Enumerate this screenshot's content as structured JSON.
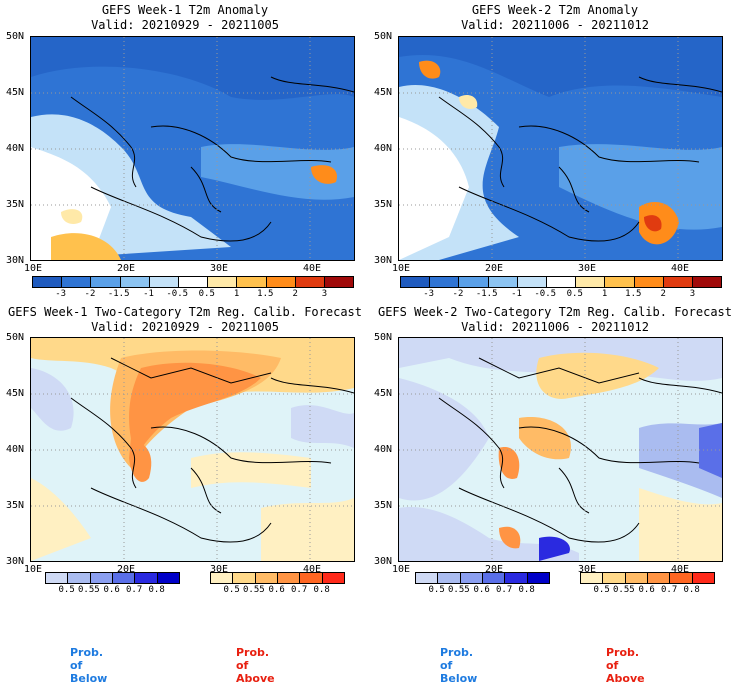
{
  "panels": [
    {
      "title": "GEFS Week-1 T2m Anomaly",
      "valid": "Valid: 20210929 - 20211005"
    },
    {
      "title": "GEFS Week-2 T2m Anomaly",
      "valid": "Valid: 20211006 - 20211012"
    },
    {
      "title": "GEFS Week-1 Two-Category T2m Reg. Calib. Forecast",
      "valid": "Valid: 20210929 - 20211005"
    },
    {
      "title": "GEFS Week-2 Two-Category T2m Reg. Calib. Forecast",
      "valid": "Valid: 20211006 - 20211012"
    }
  ],
  "lat_labels": [
    "50N",
    "45N",
    "40N",
    "35N",
    "30N"
  ],
  "lon_labels": [
    "10E",
    "20E",
    "30E",
    "40E"
  ],
  "anomaly_colorbar": {
    "labels": [
      "-3",
      "-2",
      "-1.5",
      "-1",
      "-0.5",
      "0.5",
      "1",
      "1.5",
      "2",
      "3"
    ],
    "colors": [
      "#1f5bbf",
      "#2f74d4",
      "#5aa0e8",
      "#8cc4f2",
      "#c4e2f8",
      "#ffffff",
      "#ffe9a8",
      "#ffc14d",
      "#ff8c1a",
      "#e03b10",
      "#a00a0a"
    ]
  },
  "prob_below": {
    "labels": [
      "0.5",
      "0.55",
      "0.6",
      "0.7",
      "0.8"
    ],
    "colors": [
      "#cfdaf5",
      "#aabcf0",
      "#8b9ff0",
      "#5a6fe8",
      "#2a2ae0",
      "#0000c8"
    ]
  },
  "prob_above": {
    "labels": [
      "0.5",
      "0.55",
      "0.6",
      "0.7",
      "0.8"
    ],
    "colors": [
      "#fff0c2",
      "#ffd98a",
      "#ffbb66",
      "#ff9444",
      "#ff6622",
      "#ff2a1a"
    ]
  },
  "legend": {
    "below": "Prob. of Below",
    "above": "Prob. of Above"
  },
  "colors": {
    "prob_below_text": "#1e7be0",
    "prob_above_text": "#e82010",
    "sea_prob": "#dff3f8",
    "grid": "#999999"
  }
}
